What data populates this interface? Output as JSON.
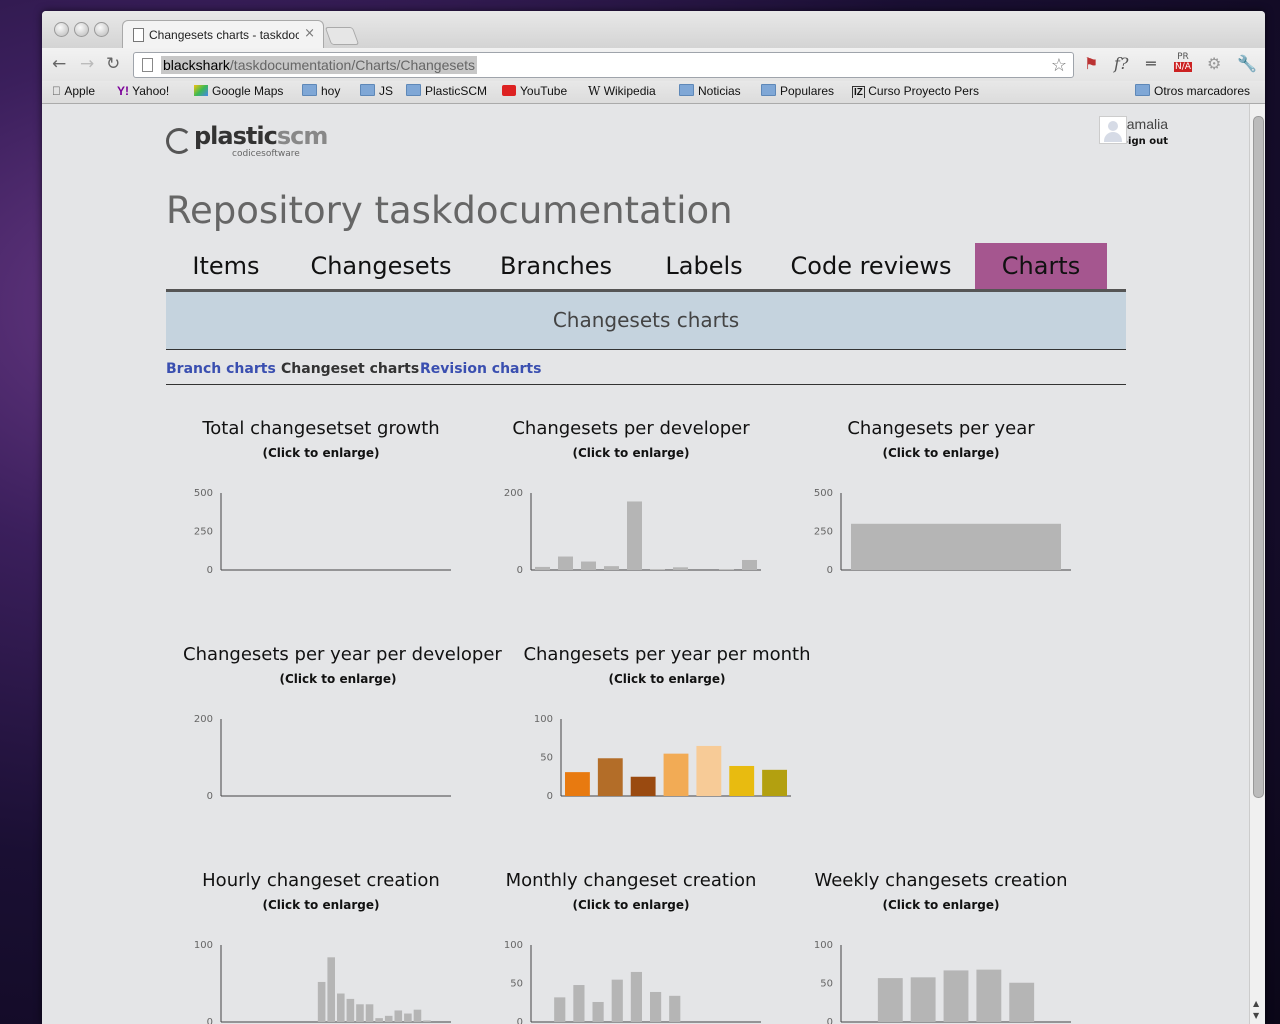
{
  "browser": {
    "tab_title": "Changesets charts - taskdoc",
    "tab_close": "×",
    "url_host": "blackshark",
    "url_path": "/taskdocumentation/Charts/Changesets",
    "bookmarks": [
      {
        "label": "Apple",
        "icon": "apple-icon"
      },
      {
        "label": "Yahoo!",
        "icon": "yahoo-icon"
      },
      {
        "label": "Google Maps",
        "icon": "maps-icon"
      },
      {
        "label": "hoy",
        "icon": "folder-icon"
      },
      {
        "label": "JS",
        "icon": "folder-icon"
      },
      {
        "label": "PlasticSCM",
        "icon": "folder-icon"
      },
      {
        "label": "YouTube",
        "icon": "youtube-icon"
      },
      {
        "label": "Wikipedia",
        "icon": "wikipedia-icon"
      },
      {
        "label": "Noticias",
        "icon": "folder-icon"
      },
      {
        "label": "Populares",
        "icon": "folder-icon"
      },
      {
        "label": "Curso Proyecto Pers",
        "icon": "iz-icon"
      }
    ],
    "other_bookmarks": "Otros marcadores",
    "extensions": {
      "fx": "f?",
      "pr": "PR",
      "na": "N/A"
    }
  },
  "header": {
    "logo_main": "plastic",
    "logo_scm": "scm",
    "logo_tagline": "codicesoftware",
    "user_name": "amalia",
    "sign_out": "Sign out"
  },
  "repo_title": "Repository taskdocumentation",
  "nav_tabs": [
    "Items",
    "Changesets",
    "Branches",
    "Labels",
    "Code reviews",
    "Charts"
  ],
  "active_tab": "Charts",
  "section_title": "Changesets charts",
  "sub_links": {
    "branch": "Branch charts",
    "changeset": "Changeset charts",
    "revision": "Revision charts"
  },
  "click_hint": "(Click to enlarge)",
  "colors": {
    "bar_gray": "#b5b5b5",
    "active_tab": "#a5568f",
    "subheader": "#c5d3de",
    "link": "#3a4fb0"
  },
  "chart_data": [
    {
      "type": "line",
      "title": "Total changesetset growth",
      "yticks": [
        0,
        250,
        500
      ],
      "ylim": [
        0,
        500
      ],
      "values": []
    },
    {
      "type": "bar",
      "title": "Changesets per developer",
      "yticks": [
        0,
        200
      ],
      "ylim": [
        0,
        200
      ],
      "values": [
        8,
        35,
        22,
        10,
        178,
        2,
        7,
        0,
        2,
        26
      ]
    },
    {
      "type": "bar",
      "title": "Changesets per year",
      "yticks": [
        0,
        250,
        500
      ],
      "ylim": [
        0,
        500
      ],
      "values": [
        300
      ]
    },
    {
      "type": "bar",
      "title": "Changesets per year per developer",
      "yticks": [
        0,
        200
      ],
      "ylim": [
        0,
        200
      ],
      "values": []
    },
    {
      "type": "bar",
      "title": "Changesets per year per month",
      "yticks": [
        0,
        50,
        100
      ],
      "ylim": [
        0,
        100
      ],
      "values": [
        31,
        49,
        25,
        55,
        65,
        39,
        34
      ],
      "colors": [
        "#e87a10",
        "#b36d28",
        "#9a4a10",
        "#f2ab55",
        "#f7cb97",
        "#e8bb10",
        "#b3a010"
      ]
    },
    {
      "type": "bar",
      "title": "Hourly changeset creation",
      "yticks": [
        0,
        100
      ],
      "ylim": [
        0,
        100
      ],
      "values": [
        0,
        0,
        0,
        0,
        0,
        0,
        0,
        0,
        0,
        0,
        52,
        84,
        37,
        30,
        23,
        23,
        5,
        8,
        15,
        11,
        16,
        2,
        0,
        0
      ]
    },
    {
      "type": "bar",
      "title": "Monthly changeset creation",
      "yticks": [
        0,
        50,
        100
      ],
      "ylim": [
        0,
        100
      ],
      "values": [
        0,
        32,
        48,
        26,
        55,
        65,
        39,
        34,
        0,
        0,
        0,
        0
      ]
    },
    {
      "type": "bar",
      "title": "Weekly changesets creation",
      "yticks": [
        0,
        50,
        100
      ],
      "ylim": [
        0,
        100
      ],
      "values": [
        0,
        57,
        58,
        67,
        68,
        51,
        0
      ]
    }
  ]
}
